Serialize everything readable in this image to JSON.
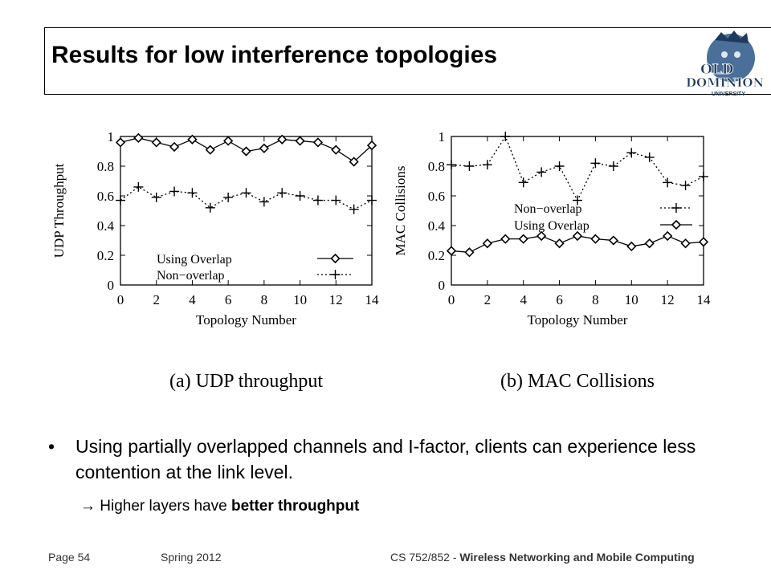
{
  "slide": {
    "title": "Results for low interference topologies",
    "bullet_symbol": "•",
    "bullet_text": "Using partially overlapped channels and I-factor, clients can experience less contention at the link level.",
    "sub_arrow": "→",
    "sub_text_plain": " Higher layers have ",
    "sub_text_bold": "better throughput"
  },
  "logo": {
    "line1": "OLD",
    "line2": "DOMINION",
    "line3": "UNIVERSITY"
  },
  "footer": {
    "page": "Page 54",
    "term": "Spring 2012",
    "course_prefix": "CS 752/852 - ",
    "course_bold": "Wireless Networking and Mobile Computing"
  },
  "chart_data": [
    {
      "type": "line",
      "caption": "(a) UDP throughput",
      "xlabel": "Topology Number",
      "ylabel": "UDP Throughput",
      "xlim": [
        0,
        14
      ],
      "ylim": [
        0,
        1
      ],
      "xticks": [
        0,
        2,
        4,
        6,
        8,
        10,
        12,
        14
      ],
      "yticks": [
        0,
        0.2,
        0.4,
        0.6,
        0.8,
        1
      ],
      "ytick_labels": [
        "0",
        "0.2",
        "0.4",
        "0.6",
        "0.8",
        "1"
      ],
      "legend_position": "bottom-right",
      "x": [
        0,
        1,
        2,
        3,
        4,
        5,
        6,
        7,
        8,
        9,
        10,
        11,
        12,
        13,
        14
      ],
      "series": [
        {
          "name": "Using Overlap",
          "marker": "diamond",
          "dash": "solid",
          "values": [
            0.96,
            0.99,
            0.96,
            0.93,
            0.98,
            0.91,
            0.97,
            0.9,
            0.92,
            0.98,
            0.97,
            0.96,
            0.91,
            0.83,
            0.94
          ]
        },
        {
          "name": "Non−overlap",
          "marker": "plus",
          "dash": "dotted",
          "values": [
            0.57,
            0.66,
            0.59,
            0.63,
            0.62,
            0.52,
            0.59,
            0.62,
            0.56,
            0.62,
            0.6,
            0.57,
            0.57,
            0.51,
            0.57
          ]
        }
      ]
    },
    {
      "type": "line",
      "caption": "(b) MAC Collisions",
      "xlabel": "Topology Number",
      "ylabel": "MAC Collisions",
      "xlim": [
        0,
        14
      ],
      "ylim": [
        0,
        1
      ],
      "xticks": [
        0,
        2,
        4,
        6,
        8,
        10,
        12,
        14
      ],
      "yticks": [
        0,
        0.2,
        0.4,
        0.6,
        0.8,
        1
      ],
      "ytick_labels": [
        "0",
        "0.2",
        "0.4",
        "0.6",
        "0.8",
        "1"
      ],
      "legend_position": "center-right",
      "x": [
        0,
        1,
        2,
        3,
        4,
        5,
        6,
        7,
        8,
        9,
        10,
        11,
        12,
        13,
        14
      ],
      "series": [
        {
          "name": "Non−overlap",
          "marker": "plus",
          "dash": "dotted",
          "values": [
            0.81,
            0.8,
            0.81,
            1.0,
            0.69,
            0.76,
            0.8,
            0.57,
            0.82,
            0.8,
            0.89,
            0.86,
            0.69,
            0.67,
            0.73
          ]
        },
        {
          "name": "Using Overlap",
          "marker": "diamond",
          "dash": "solid",
          "values": [
            0.23,
            0.22,
            0.28,
            0.31,
            0.31,
            0.33,
            0.28,
            0.33,
            0.31,
            0.3,
            0.26,
            0.28,
            0.33,
            0.28,
            0.29
          ]
        }
      ]
    }
  ]
}
